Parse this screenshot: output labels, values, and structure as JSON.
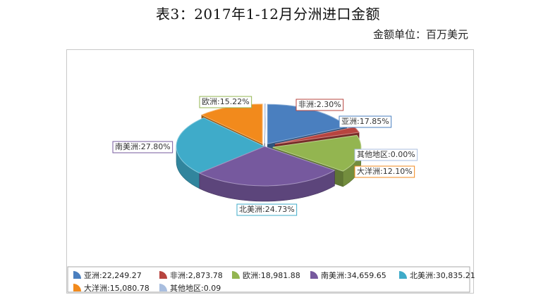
{
  "page": {
    "title": "表3：2017年1-12月分洲进口金额",
    "unit": "金额单位：百万美元"
  },
  "chart_data": {
    "type": "pie",
    "title": "表3：2017年1-12月分洲进口金额",
    "subtitle": "金额单位：百万美元",
    "legend_position": "bottom",
    "slices": [
      {
        "name": "亚洲",
        "value": 22249.27,
        "value_label": "22,249.27",
        "percent_label": "17.85%",
        "color": "#4a7fbf"
      },
      {
        "name": "非洲",
        "value": 2873.78,
        "value_label": "2,873.78",
        "percent_label": "2.30%",
        "color": "#b7443f"
      },
      {
        "name": "欧洲",
        "value": 18981.88,
        "value_label": "18,981.88",
        "percent_label": "15.22%",
        "color": "#93b550"
      },
      {
        "name": "南美洲",
        "value": 34659.65,
        "value_label": "34,659.65",
        "percent_label": "27.80%",
        "color": "#76599e"
      },
      {
        "name": "北美洲",
        "value": 30835.21,
        "value_label": "30,835.21",
        "percent_label": "24.73%",
        "color": "#3fabc9"
      },
      {
        "name": "大洋洲",
        "value": 15080.78,
        "value_label": "15,080.78",
        "percent_label": "12.10%",
        "color": "#f28a1c"
      },
      {
        "name": "其他地区",
        "value": 0.09,
        "value_label": "0.09",
        "percent_label": "0.00%",
        "color": "#a9bedf"
      }
    ]
  }
}
